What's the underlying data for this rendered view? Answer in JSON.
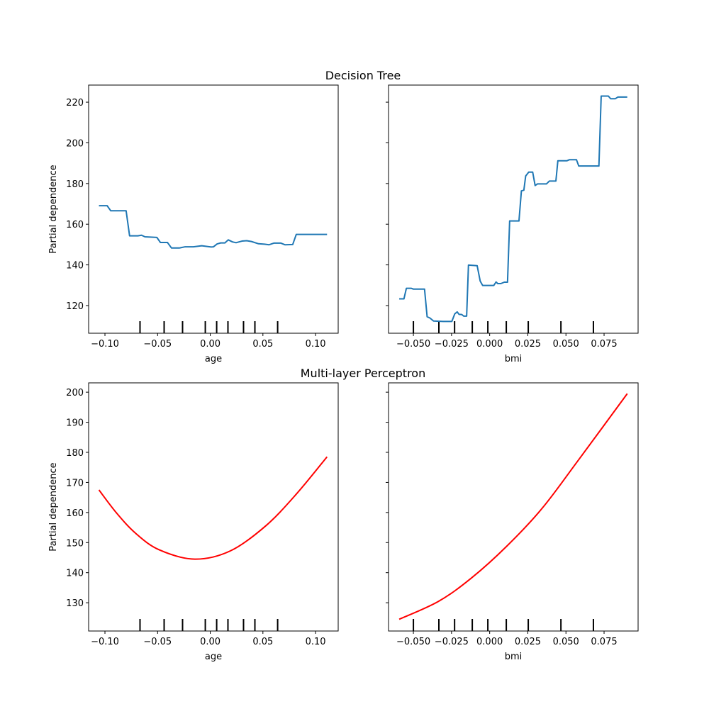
{
  "chart_data": [
    {
      "type": "line",
      "row_title": "Decision Tree",
      "xlabel": "age",
      "ylabel": "Partial dependence",
      "xlim": [
        -0.1155,
        0.1215
      ],
      "ylim": [
        106.4,
        228.4
      ],
      "x_ticks": [
        -0.1,
        -0.05,
        0.0,
        0.05,
        0.1
      ],
      "x_tick_labels": [
        "−0.10",
        "−0.05",
        "0.00",
        "0.05",
        "0.10"
      ],
      "y_ticks": [
        120,
        140,
        160,
        180,
        200,
        220
      ],
      "y_tick_labels": [
        "120",
        "140",
        "160",
        "180",
        "200",
        "220"
      ],
      "show_y_tick_labels": true,
      "color": "#1f77b4",
      "smooth": false,
      "deciles": [
        -0.0667,
        -0.0438,
        -0.0263,
        -0.0047,
        0.0061,
        0.0168,
        0.0316,
        0.0424,
        0.064
      ],
      "points": [
        [
          -0.1057,
          169.1
        ],
        [
          -0.0979,
          169.1
        ],
        [
          -0.0945,
          166.6
        ],
        [
          -0.0799,
          166.6
        ],
        [
          -0.0766,
          154.3
        ],
        [
          -0.0687,
          154.3
        ],
        [
          -0.0653,
          154.6
        ],
        [
          -0.062,
          153.8
        ],
        [
          -0.0507,
          153.5
        ],
        [
          -0.0473,
          151.0
        ],
        [
          -0.0406,
          151.0
        ],
        [
          -0.0368,
          148.3
        ],
        [
          -0.0294,
          148.3
        ],
        [
          -0.0238,
          148.9
        ],
        [
          -0.016,
          148.9
        ],
        [
          -0.0081,
          149.4
        ],
        [
          0.0009,
          148.8
        ],
        [
          0.0031,
          148.9
        ],
        [
          0.0065,
          150.3
        ],
        [
          0.0099,
          150.8
        ],
        [
          0.0139,
          150.8
        ],
        [
          0.0171,
          152.3
        ],
        [
          0.0211,
          151.3
        ],
        [
          0.0245,
          150.9
        ],
        [
          0.0301,
          151.7
        ],
        [
          0.0346,
          151.9
        ],
        [
          0.0391,
          151.5
        ],
        [
          0.0458,
          150.4
        ],
        [
          0.0514,
          150.2
        ],
        [
          0.0559,
          149.9
        ],
        [
          0.0604,
          150.7
        ],
        [
          0.0671,
          150.7
        ],
        [
          0.0709,
          149.9
        ],
        [
          0.0783,
          150.0
        ],
        [
          0.0817,
          155.0
        ],
        [
          0.1109,
          155.0
        ]
      ]
    },
    {
      "type": "line",
      "xlabel": "bmi",
      "xlim": [
        -0.0663,
        0.0973
      ],
      "ylim": [
        106.4,
        228.4
      ],
      "x_ticks": [
        -0.05,
        -0.025,
        0.0,
        0.025,
        0.05,
        0.075
      ],
      "x_tick_labels": [
        "−0.050",
        "−0.025",
        "0.000",
        "0.025",
        "0.050",
        "0.075"
      ],
      "y_ticks": [
        120,
        140,
        160,
        180,
        200,
        220
      ],
      "show_y_tick_labels": false,
      "color": "#1f77b4",
      "smooth": false,
      "deciles": [
        -0.05,
        -0.0333,
        -0.023,
        -0.0114,
        -0.0012,
        0.0109,
        0.0253,
        0.0467,
        0.068
      ],
      "points": [
        [
          -0.0593,
          123.3
        ],
        [
          -0.0562,
          123.3
        ],
        [
          -0.0546,
          128.5
        ],
        [
          -0.0515,
          128.5
        ],
        [
          -0.05,
          128.1
        ],
        [
          -0.0427,
          128.1
        ],
        [
          -0.041,
          114.5
        ],
        [
          -0.0392,
          113.9
        ],
        [
          -0.0368,
          112.4
        ],
        [
          -0.0306,
          112.2
        ],
        [
          -0.0248,
          112.2
        ],
        [
          -0.0229,
          115.9
        ],
        [
          -0.0213,
          116.9
        ],
        [
          -0.0201,
          115.7
        ],
        [
          -0.0183,
          115.6
        ],
        [
          -0.017,
          114.8
        ],
        [
          -0.0151,
          114.8
        ],
        [
          -0.0139,
          139.9
        ],
        [
          -0.0082,
          139.6
        ],
        [
          -0.0062,
          132.0
        ],
        [
          -0.0046,
          129.9
        ],
        [
          0.0027,
          129.9
        ],
        [
          0.0042,
          131.6
        ],
        [
          0.0053,
          130.8
        ],
        [
          0.0073,
          130.8
        ],
        [
          0.0096,
          131.5
        ],
        [
          0.0117,
          131.5
        ],
        [
          0.0131,
          161.6
        ],
        [
          0.0192,
          161.6
        ],
        [
          0.0208,
          176.4
        ],
        [
          0.0224,
          176.7
        ],
        [
          0.0236,
          183.7
        ],
        [
          0.0256,
          185.6
        ],
        [
          0.0282,
          185.6
        ],
        [
          0.0298,
          179.0
        ],
        [
          0.0313,
          179.8
        ],
        [
          0.0372,
          179.8
        ],
        [
          0.0391,
          181.2
        ],
        [
          0.0434,
          181.2
        ],
        [
          0.0447,
          191.2
        ],
        [
          0.0507,
          191.2
        ],
        [
          0.0522,
          191.7
        ],
        [
          0.0569,
          191.7
        ],
        [
          0.0584,
          188.6
        ],
        [
          0.0716,
          188.6
        ],
        [
          0.0731,
          223.0
        ],
        [
          0.0778,
          223.0
        ],
        [
          0.0793,
          221.7
        ],
        [
          0.0824,
          221.7
        ],
        [
          0.084,
          222.5
        ],
        [
          0.0902,
          222.5
        ]
      ]
    },
    {
      "type": "line",
      "row_title": "Multi-layer Perceptron",
      "xlabel": "age",
      "ylabel": "Partial dependence",
      "xlim": [
        -0.1155,
        0.1215
      ],
      "ylim": [
        120.6,
        203.1
      ],
      "x_ticks": [
        -0.1,
        -0.05,
        0.0,
        0.05,
        0.1
      ],
      "x_tick_labels": [
        "−0.10",
        "−0.05",
        "0.00",
        "0.05",
        "0.10"
      ],
      "y_ticks": [
        130,
        140,
        150,
        160,
        170,
        180,
        190,
        200
      ],
      "y_tick_labels": [
        "130",
        "140",
        "150",
        "160",
        "170",
        "180",
        "190",
        "200"
      ],
      "show_y_tick_labels": true,
      "color": "#ff0000",
      "smooth": true,
      "deciles": [
        -0.0667,
        -0.0438,
        -0.0263,
        -0.0047,
        0.0061,
        0.0168,
        0.0316,
        0.0424,
        0.064
      ],
      "points": [
        [
          -0.1057,
          167.5
        ],
        [
          -0.0889,
          159.8
        ],
        [
          -0.0709,
          153.1
        ],
        [
          -0.0485,
          147.6
        ],
        [
          -0.0148,
          144.5
        ],
        [
          0.0189,
          147.2
        ],
        [
          0.0525,
          155.5
        ],
        [
          0.0817,
          166.1
        ],
        [
          0.1109,
          178.5
        ]
      ]
    },
    {
      "type": "line",
      "xlabel": "bmi",
      "xlim": [
        -0.0663,
        0.0973
      ],
      "ylim": [
        120.6,
        203.1
      ],
      "x_ticks": [
        -0.05,
        -0.025,
        0.0,
        0.025,
        0.05,
        0.075
      ],
      "x_tick_labels": [
        "−0.050",
        "−0.025",
        "0.000",
        "0.025",
        "0.050",
        "0.075"
      ],
      "y_ticks": [
        130,
        140,
        150,
        160,
        170,
        180,
        190,
        200
      ],
      "show_y_tick_labels": false,
      "color": "#ff0000",
      "smooth": true,
      "deciles": [
        -0.05,
        -0.0333,
        -0.023,
        -0.0114,
        -0.0012,
        0.0109,
        0.0253,
        0.0467,
        0.068
      ],
      "points": [
        [
          -0.0593,
          124.5
        ],
        [
          -0.0337,
          130.4
        ],
        [
          -0.012,
          138.2
        ],
        [
          0.0112,
          148.8
        ],
        [
          0.0344,
          161.4
        ],
        [
          0.0577,
          177.1
        ],
        [
          0.0902,
          199.5
        ]
      ]
    }
  ]
}
